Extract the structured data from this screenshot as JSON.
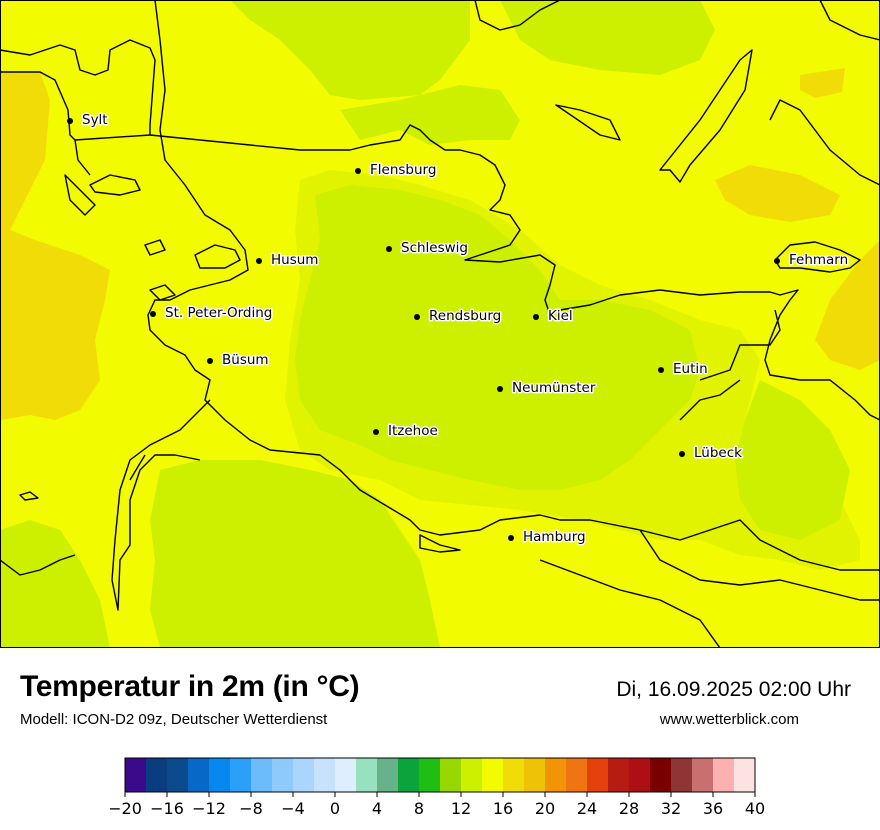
{
  "map": {
    "colors": {
      "c12": "#cdef00",
      "c14": "#e2f300",
      "c16": "#f3fb00",
      "c18": "#f1dc07",
      "c20": "#efc305",
      "coast": "#000000"
    },
    "cities": [
      {
        "name": "Sylt"
      },
      {
        "name": "Flensburg"
      },
      {
        "name": "Schleswig"
      },
      {
        "name": "Husum"
      },
      {
        "name": "Fehmarn"
      },
      {
        "name": "St. Peter-Ording"
      },
      {
        "name": "Rendsburg"
      },
      {
        "name": "Kiel"
      },
      {
        "name": "Büsum"
      },
      {
        "name": "Eutin"
      },
      {
        "name": "Neumünster"
      },
      {
        "name": "Itzehoe"
      },
      {
        "name": "Lübeck"
      },
      {
        "name": "Hamburg"
      }
    ]
  },
  "footer": {
    "title": "Temperatur in 2m (in °C)",
    "model": "Modell: ICON-D2 09z, Deutscher Wetterdienst",
    "datetime": "Di, 16.09.2025 02:00 Uhr",
    "site": "www.wetterblick.com"
  },
  "colorbar": {
    "colors": [
      "#3b0a8a",
      "#0a3d80",
      "#0b4a8c",
      "#0768c8",
      "#0788ef",
      "#2ba0f8",
      "#6cbbfb",
      "#8ecafb",
      "#abd5fd",
      "#c8e2fe",
      "#deeefe",
      "#97e1be",
      "#68b28a",
      "#0aa33c",
      "#1fbe12",
      "#98d800",
      "#cdef00",
      "#f3fb00",
      "#f1dc07",
      "#efc305",
      "#f19405",
      "#f07411",
      "#e5410c",
      "#b71c12",
      "#ae0f14",
      "#7a0000",
      "#8f3535",
      "#c87070",
      "#fdb0b0",
      "#fde2e2"
    ],
    "ticks": [
      "−20",
      "−16",
      "−12",
      "−8",
      "−4",
      "0",
      "4",
      "8",
      "12",
      "16",
      "20",
      "24",
      "28",
      "32",
      "36",
      "40"
    ]
  }
}
